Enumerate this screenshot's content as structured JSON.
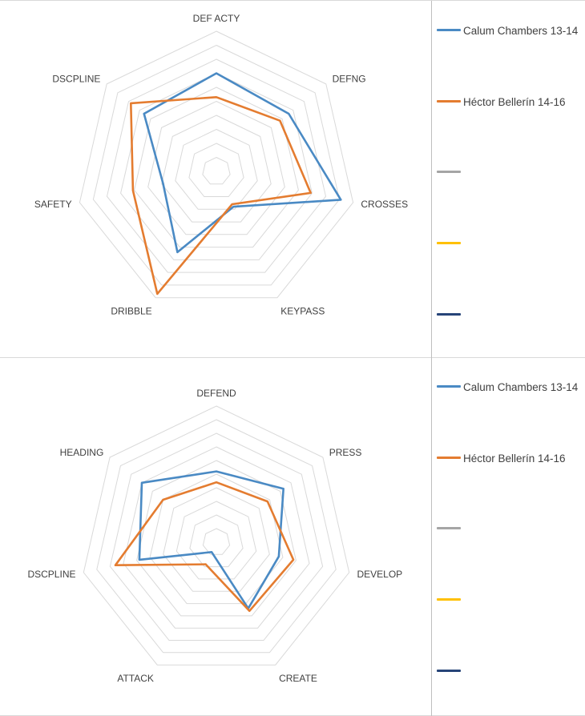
{
  "chart_data": [
    {
      "type": "radar",
      "title": "",
      "axes": [
        "DEF ACTY",
        "DEFNG",
        "CROSSES",
        "KEYPASS",
        "DRIBBLE",
        "SAFETY",
        "DSCPLINE"
      ],
      "rlim": [
        0,
        10
      ],
      "rings": 10,
      "grid": true,
      "legend_position": "right",
      "series": [
        {
          "name": "Calum Chambers 13-14",
          "color": "#4a8ac4",
          "values": [
            7,
            6.6,
            9.1,
            2.8,
            6.4,
            3.9,
            6.6
          ]
        },
        {
          "name": "Héctor Bellerín 14-16",
          "color": "#e47c30",
          "values": [
            5.3,
            5.8,
            6.9,
            2.6,
            9.7,
            6.1,
            7.8
          ]
        }
      ],
      "legend": [
        {
          "label": "Calum Chambers 13-14",
          "color": "#4a8ac4"
        },
        {
          "label": "Héctor Bellerín 14-16",
          "color": "#e47c30"
        },
        {
          "label": "",
          "color": "#a5a5a5"
        },
        {
          "label": "",
          "color": "#ffc000"
        },
        {
          "label": "",
          "color": "#264478"
        }
      ]
    },
    {
      "type": "radar",
      "title": "",
      "axes": [
        "DEFEND",
        "PRESS",
        "DEVELOP",
        "CREATE",
        "ATTACK",
        "DSCPLINE",
        "HEADING"
      ],
      "rlim": [
        0,
        10
      ],
      "rings": 10,
      "grid": true,
      "legend_position": "right",
      "series": [
        {
          "name": "Calum Chambers 13-14",
          "color": "#4a8ac4",
          "values": [
            5.2,
            6.3,
            4.7,
            5.4,
            0.8,
            5.8,
            7.0
          ]
        },
        {
          "name": "Héctor Bellerín 14-16",
          "color": "#e47c30",
          "values": [
            4.4,
            4.8,
            5.8,
            5.6,
            1.8,
            7.6,
            5.0
          ]
        }
      ],
      "legend": [
        {
          "label": "Calum Chambers 13-14",
          "color": "#4a8ac4"
        },
        {
          "label": "Héctor Bellerín 14-16",
          "color": "#e47c30"
        },
        {
          "label": "",
          "color": "#a5a5a5"
        },
        {
          "label": "",
          "color": "#ffc000"
        },
        {
          "label": "",
          "color": "#264478"
        }
      ]
    }
  ]
}
